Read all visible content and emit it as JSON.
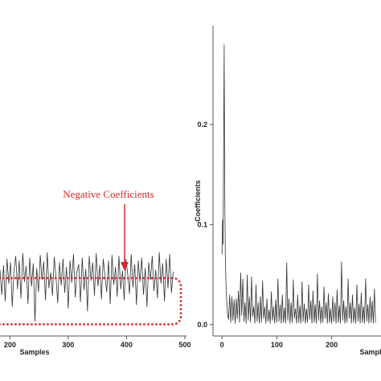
{
  "chart_data": [
    {
      "type": "line",
      "panel": "left",
      "xlabel": "Samples",
      "ylabel": "",
      "x_ticks": [
        200,
        300,
        400,
        500
      ],
      "xlim": [
        183,
        500
      ],
      "ylim": [
        -0.06,
        0.06
      ],
      "annotation": {
        "text": "Negative Coefficients",
        "color": "#d42a2a"
      },
      "negative_region": {
        "y_top": 0.0,
        "y_bottom": -0.05,
        "color": "#d42a2a"
      },
      "series": [
        {
          "x": [
            183,
            186,
            189,
            192,
            195,
            198,
            201,
            204,
            207,
            210,
            213,
            216,
            219,
            222,
            225,
            228,
            231,
            234,
            237,
            240,
            243,
            246,
            249,
            252,
            255,
            258,
            261,
            264,
            267,
            270,
            273,
            276,
            279,
            282,
            285,
            288,
            291,
            294,
            297,
            300,
            303,
            306,
            309,
            312,
            315,
            318,
            321,
            324,
            327,
            330,
            333,
            336,
            339,
            342,
            345,
            348,
            351,
            354,
            357,
            360,
            363,
            366,
            369,
            372,
            375,
            378,
            381,
            384,
            387,
            390,
            393,
            396,
            399,
            402,
            405,
            408,
            411,
            414,
            417,
            420,
            423,
            426,
            429,
            432,
            435,
            438,
            441,
            444,
            447,
            450,
            453,
            456,
            459,
            462,
            465,
            468,
            471,
            474,
            477,
            480
          ],
          "values": [
            0.009,
            -0.018,
            0.014,
            -0.025,
            0.021,
            -0.006,
            0.017,
            -0.031,
            0.008,
            0.024,
            -0.012,
            0.019,
            -0.022,
            0.027,
            -0.004,
            0.013,
            -0.028,
            0.022,
            -0.009,
            0.016,
            -0.047,
            0.011,
            -0.015,
            0.025,
            -0.002,
            0.018,
            -0.024,
            0.028,
            -0.011,
            0.006,
            -0.019,
            0.023,
            0.001,
            -0.027,
            0.017,
            -0.008,
            0.021,
            -0.016,
            0.012,
            -0.033,
            0.019,
            -0.005,
            0.026,
            -0.021,
            0.007,
            0.015,
            -0.026,
            0.022,
            -0.013,
            0.01,
            -0.036,
            0.024,
            -0.003,
            0.017,
            -0.019,
            0.027,
            -0.009,
            0.014,
            -0.023,
            0.021,
            0.002,
            -0.015,
            0.019,
            -0.028,
            0.025,
            -0.007,
            0.012,
            -0.02,
            0.024,
            -0.012,
            0.008,
            -0.024,
            0.021,
            0.004,
            -0.017,
            0.026,
            -0.01,
            0.015,
            -0.029,
            0.019,
            -0.004,
            0.022,
            -0.018,
            0.011,
            -0.031,
            0.017,
            -0.002,
            0.024,
            -0.014,
            0.009,
            -0.022,
            0.028,
            -0.006,
            0.016,
            -0.025,
            0.021,
            -0.011,
            0.026,
            -0.016,
            0.007
          ]
        }
      ]
    },
    {
      "type": "line",
      "panel": "right",
      "xlabel": "Samples",
      "ylabel": "Coefficients",
      "x_ticks": [
        0,
        100,
        200
      ],
      "y_ticks": [
        0.0,
        0.1,
        0.2
      ],
      "x_tick_labels": [
        "0",
        "100",
        "200"
      ],
      "y_tick_labels": [
        "0.0",
        "0.1",
        "0.2"
      ],
      "xlim": [
        -12,
        290
      ],
      "ylim": [
        -0.005,
        0.29
      ],
      "series": [
        {
          "x": [
            0,
            1,
            2,
            3,
            4,
            5,
            6,
            7,
            8,
            9,
            10,
            11,
            12,
            14,
            16,
            18,
            20,
            22,
            24,
            26,
            28,
            30,
            32,
            34,
            36,
            38,
            40,
            42,
            44,
            46,
            48,
            50,
            52,
            54,
            56,
            58,
            60,
            62,
            64,
            66,
            68,
            70,
            72,
            74,
            76,
            78,
            80,
            82,
            84,
            86,
            88,
            90,
            92,
            94,
            96,
            98,
            100,
            102,
            104,
            106,
            108,
            110,
            112,
            114,
            116,
            118,
            120,
            122,
            124,
            126,
            128,
            130,
            132,
            134,
            136,
            138,
            140,
            142,
            144,
            146,
            148,
            150,
            152,
            154,
            156,
            158,
            160,
            162,
            164,
            166,
            168,
            170,
            172,
            174,
            176,
            178,
            180,
            182,
            184,
            186,
            188,
            190,
            192,
            194,
            196,
            198,
            200,
            202,
            204,
            206,
            208,
            210,
            212,
            214,
            216,
            218,
            220,
            222,
            224,
            226,
            228,
            230,
            232,
            234,
            236,
            238,
            240,
            242,
            244,
            246,
            248,
            250,
            252,
            254,
            256,
            258,
            260,
            262,
            264,
            266,
            268,
            270,
            272,
            274,
            276,
            278,
            280
          ],
          "values": [
            0.07,
            0.105,
            0.08,
            0.175,
            0.28,
            0.13,
            0.07,
            0.045,
            0.03,
            0.02,
            0.012,
            0.008,
            0.005,
            0.03,
            0.002,
            0.028,
            0.004,
            0.025,
            0.001,
            0.026,
            0.006,
            0.034,
            0.002,
            0.052,
            0.009,
            0.046,
            0.003,
            0.022,
            0.001,
            0.05,
            0.004,
            0.028,
            0.002,
            0.048,
            0.008,
            0.018,
            0.001,
            0.04,
            0.003,
            0.022,
            0.001,
            0.028,
            0.002,
            0.044,
            0.006,
            0.018,
            0.001,
            0.026,
            0.003,
            0.015,
            0.001,
            0.033,
            0.004,
            0.018,
            0.001,
            0.025,
            0.002,
            0.046,
            0.003,
            0.02,
            0.001,
            0.03,
            0.002,
            0.017,
            0.001,
            0.062,
            0.004,
            0.026,
            0.001,
            0.022,
            0.002,
            0.045,
            0.006,
            0.016,
            0.001,
            0.03,
            0.002,
            0.019,
            0.001,
            0.043,
            0.003,
            0.021,
            0.001,
            0.016,
            0.002,
            0.04,
            0.005,
            0.024,
            0.001,
            0.034,
            0.002,
            0.02,
            0.001,
            0.051,
            0.004,
            0.024,
            0.001,
            0.018,
            0.002,
            0.038,
            0.006,
            0.022,
            0.001,
            0.031,
            0.002,
            0.016,
            0.001,
            0.028,
            0.003,
            0.022,
            0.001,
            0.035,
            0.002,
            0.019,
            0.001,
            0.063,
            0.004,
            0.024,
            0.001,
            0.018,
            0.002,
            0.046,
            0.006,
            0.022,
            0.001,
            0.03,
            0.002,
            0.017,
            0.001,
            0.04,
            0.003,
            0.021,
            0.001,
            0.032,
            0.002,
            0.018,
            0.001,
            0.046,
            0.003,
            0.02,
            0.001,
            0.028,
            0.002,
            0.024,
            0.001,
            0.036,
            0.002
          ]
        }
      ]
    }
  ]
}
